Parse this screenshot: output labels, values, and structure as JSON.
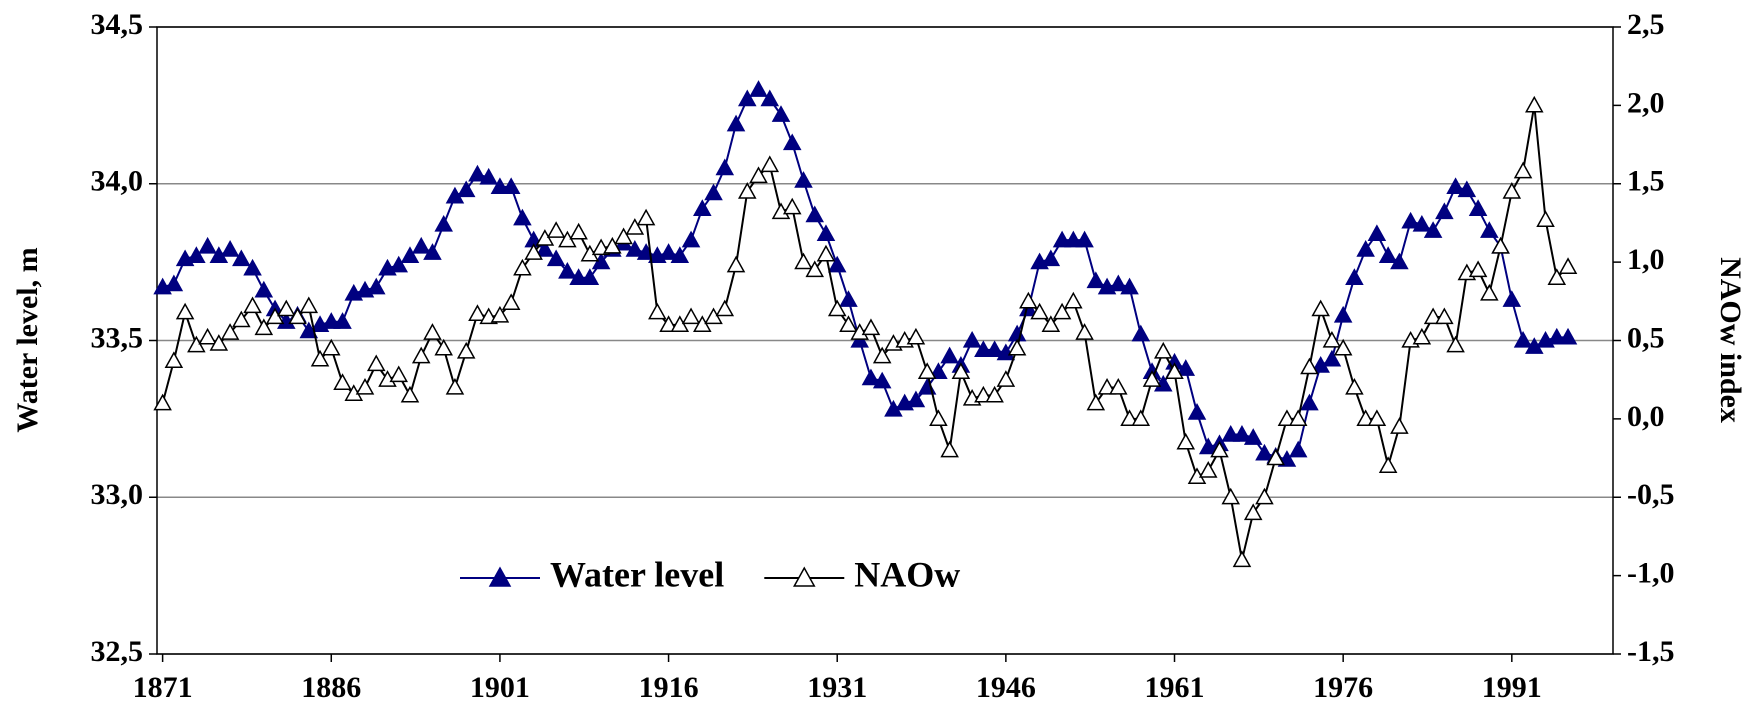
{
  "chart_data": {
    "type": "line",
    "x": [
      1871,
      1872,
      1873,
      1874,
      1875,
      1876,
      1877,
      1878,
      1879,
      1880,
      1881,
      1882,
      1883,
      1884,
      1885,
      1886,
      1887,
      1888,
      1889,
      1890,
      1891,
      1892,
      1893,
      1894,
      1895,
      1896,
      1897,
      1898,
      1899,
      1900,
      1901,
      1902,
      1903,
      1904,
      1905,
      1906,
      1907,
      1908,
      1909,
      1910,
      1911,
      1912,
      1913,
      1914,
      1915,
      1916,
      1917,
      1918,
      1919,
      1920,
      1921,
      1922,
      1923,
      1924,
      1925,
      1926,
      1927,
      1928,
      1929,
      1930,
      1931,
      1932,
      1933,
      1934,
      1935,
      1936,
      1937,
      1938,
      1939,
      1940,
      1941,
      1942,
      1943,
      1944,
      1945,
      1946,
      1947,
      1948,
      1949,
      1950,
      1951,
      1952,
      1953,
      1954,
      1955,
      1956,
      1957,
      1958,
      1959,
      1960,
      1961,
      1962,
      1963,
      1964,
      1965,
      1966,
      1967,
      1968,
      1969,
      1970,
      1971,
      1972,
      1973,
      1974,
      1975,
      1976,
      1977,
      1978,
      1979,
      1980,
      1981,
      1982,
      1983,
      1984,
      1985,
      1986,
      1987,
      1988,
      1989,
      1990,
      1991,
      1992,
      1993,
      1994,
      1995,
      1996
    ],
    "series": [
      {
        "name": "Water level",
        "color": "#000080",
        "axis": "y",
        "marker": "filled",
        "values": [
          33.67,
          33.68,
          33.76,
          33.77,
          33.8,
          33.77,
          33.79,
          33.76,
          33.73,
          33.66,
          33.6,
          33.56,
          33.58,
          33.53,
          33.55,
          33.56,
          33.56,
          33.65,
          33.66,
          33.67,
          33.73,
          33.74,
          33.77,
          33.8,
          33.78,
          33.87,
          33.96,
          33.98,
          34.03,
          34.02,
          33.99,
          33.99,
          33.89,
          33.82,
          33.79,
          33.76,
          33.72,
          33.7,
          33.7,
          33.75,
          33.79,
          33.81,
          33.79,
          33.78,
          33.77,
          33.78,
          33.77,
          33.82,
          33.92,
          33.97,
          34.05,
          34.19,
          34.27,
          34.3,
          34.27,
          34.22,
          34.13,
          34.01,
          33.9,
          33.84,
          33.74,
          33.63,
          33.5,
          33.38,
          33.37,
          33.28,
          33.3,
          33.31,
          33.35,
          33.4,
          33.45,
          33.42,
          33.5,
          33.47,
          33.47,
          33.46,
          33.52,
          33.6,
          33.75,
          33.76,
          33.82,
          33.82,
          33.82,
          33.69,
          33.67,
          33.68,
          33.67,
          33.52,
          33.4,
          33.36,
          33.43,
          33.41,
          33.27,
          33.16,
          33.17,
          33.2,
          33.2,
          33.19,
          33.14,
          33.13,
          33.12,
          33.15,
          33.3,
          33.42,
          33.44,
          33.58,
          33.7,
          33.79,
          33.84,
          33.77,
          33.75,
          33.88,
          33.87,
          33.85,
          33.91,
          33.99,
          33.98,
          33.92,
          33.85,
          33.8,
          33.63,
          33.5,
          33.48,
          33.5,
          33.51,
          33.51
        ]
      },
      {
        "name": "NAOw",
        "color": "#000000",
        "axis": "y2",
        "marker": "hollow",
        "values": [
          0.1,
          0.37,
          0.68,
          0.47,
          0.52,
          0.48,
          0.55,
          0.63,
          0.72,
          0.58,
          0.65,
          0.7,
          0.65,
          0.72,
          0.38,
          0.45,
          0.23,
          0.16,
          0.2,
          0.35,
          0.25,
          0.28,
          0.15,
          0.4,
          0.55,
          0.45,
          0.2,
          0.43,
          0.67,
          0.65,
          0.66,
          0.74,
          0.96,
          1.06,
          1.15,
          1.2,
          1.14,
          1.19,
          1.05,
          1.09,
          1.1,
          1.16,
          1.22,
          1.28,
          0.68,
          0.6,
          0.6,
          0.65,
          0.6,
          0.65,
          0.7,
          0.98,
          1.45,
          1.55,
          1.62,
          1.32,
          1.35,
          1.0,
          0.95,
          1.05,
          0.7,
          0.6,
          0.55,
          0.58,
          0.4,
          0.48,
          0.5,
          0.52,
          0.3,
          0.0,
          -0.2,
          0.3,
          0.13,
          0.15,
          0.15,
          0.25,
          0.45,
          0.75,
          0.68,
          0.6,
          0.68,
          0.75,
          0.55,
          0.1,
          0.2,
          0.2,
          0.0,
          0.0,
          0.25,
          0.43,
          0.3,
          -0.15,
          -0.37,
          -0.33,
          -0.2,
          -0.5,
          -0.9,
          -0.6,
          -0.5,
          -0.25,
          0.0,
          0.0,
          0.33,
          0.7,
          0.5,
          0.45,
          0.2,
          0.0,
          0.0,
          -0.3,
          -0.05,
          0.5,
          0.52,
          0.65,
          0.65,
          0.47,
          0.93,
          0.95,
          0.8,
          1.1,
          1.45,
          1.58,
          2.0,
          1.27,
          0.9,
          0.97
        ]
      }
    ],
    "y_label": "Water level, m",
    "y2_label": "NAOw index",
    "xlim": [
      1870.5,
      2000
    ],
    "xticks": [
      1871,
      1886,
      1901,
      1916,
      1931,
      1946,
      1961,
      1976,
      1991
    ],
    "ylim": [
      32.5,
      34.5
    ],
    "yticks": [
      {
        "value": 32.5,
        "label": "32,5"
      },
      {
        "value": 33,
        "label": "33,0"
      },
      {
        "value": 33.5,
        "label": "33,5"
      },
      {
        "value": 34,
        "label": "34,0"
      },
      {
        "value": 34.5,
        "label": "34,5"
      }
    ],
    "y2lim": [
      -1.5,
      2.5
    ],
    "y2ticks": [
      {
        "value": -1.5,
        "label": "-1,5"
      },
      {
        "value": -1,
        "label": "-1,0"
      },
      {
        "value": -0.5,
        "label": "-0,5"
      },
      {
        "value": 0,
        "label": "0,0"
      },
      {
        "value": 0.5,
        "label": "0,5"
      },
      {
        "value": 1,
        "label": "1,0"
      },
      {
        "value": 1.5,
        "label": "1,5"
      },
      {
        "value": 2,
        "label": "2,0"
      },
      {
        "value": 2.5,
        "label": "2,5"
      }
    ],
    "grid": true,
    "legend": "lower center"
  }
}
